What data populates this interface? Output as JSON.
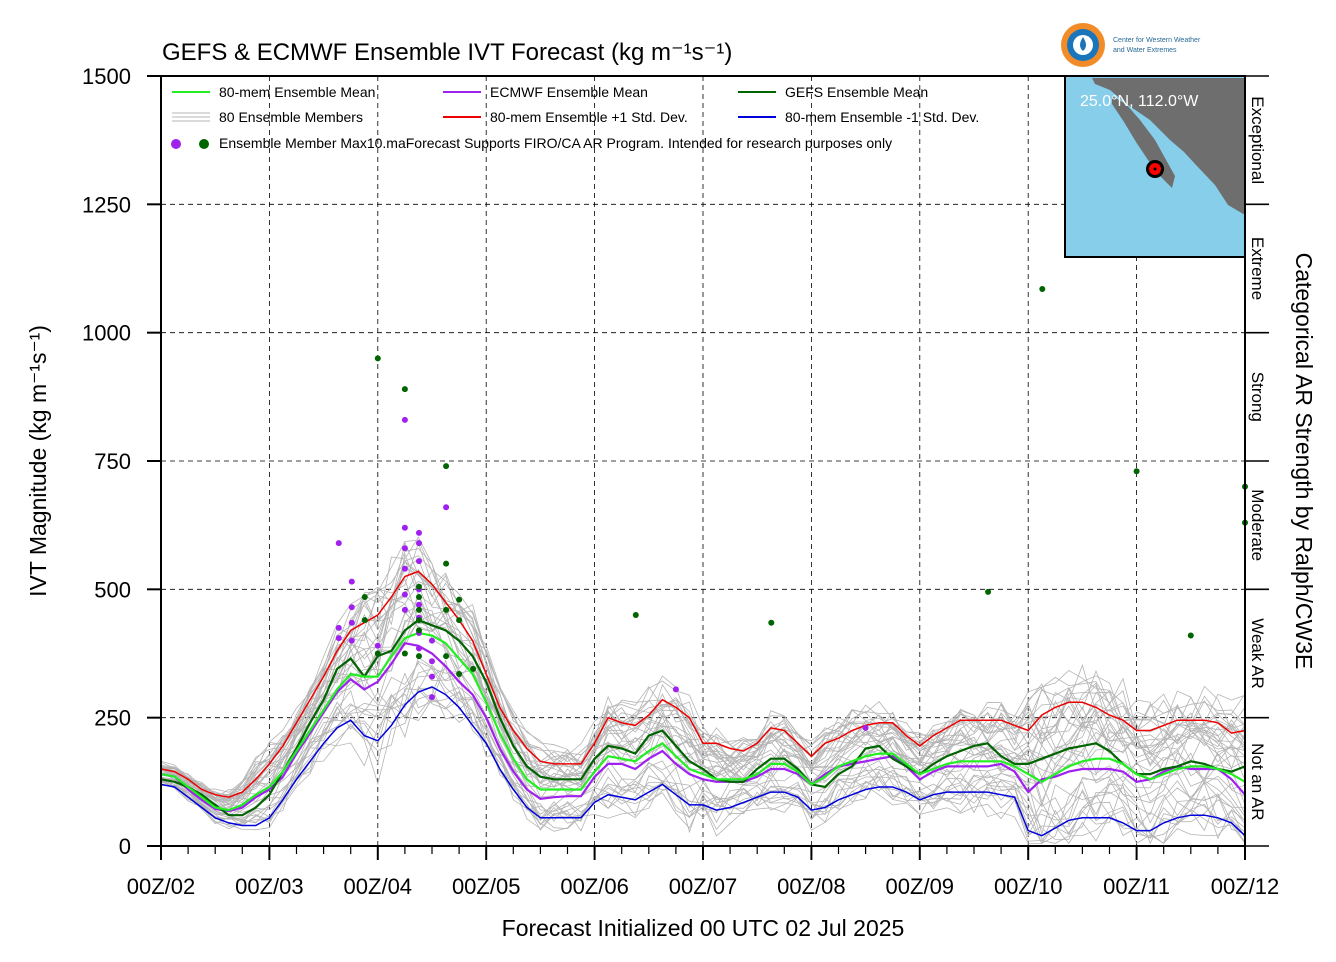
{
  "title": "GEFS & ECMWF Ensemble IVT Forecast (kg m⁻¹s⁻¹)",
  "ylabel": "IVT Magnitude (kg m⁻¹s⁻¹)",
  "xlabel": "Forecast Initialized 00 UTC 02 Jul 2025",
  "right_label": "Categorical AR Strength by Ralph/CW3E",
  "logo": {
    "line1": "Center for Western Weather",
    "line2": "and Water Extremes"
  },
  "inset": {
    "location_label": "25.0°N, 112.0°W",
    "land_color": "#6e6e6e",
    "ocean_color": "#87ceeb",
    "marker_color": "#ff0000"
  },
  "legend": {
    "row1": [
      "80-mem Ensemble Mean",
      "ECMWF Ensemble Mean",
      "GEFS Ensemble Mean"
    ],
    "row2": [
      "80 Ensemble Members",
      "80-mem Ensemble +1 Std. Dev.",
      "80-mem Ensemble -1 Std. Dev."
    ],
    "row3": "Ensemble Member Max",
    "note": "10.maForecast Supports FIRO/CA AR Program. Intended for research purposes only"
  },
  "categories": [
    {
      "label": "Not an AR",
      "from": 0,
      "to": 250
    },
    {
      "label": "Weak AR",
      "from": 250,
      "to": 500
    },
    {
      "label": "Moderate",
      "from": 500,
      "to": 750
    },
    {
      "label": "Strong",
      "from": 750,
      "to": 1000
    },
    {
      "label": "Extreme",
      "from": 1000,
      "to": 1250
    },
    {
      "label": "Exceptional",
      "from": 1250,
      "to": 1500
    }
  ],
  "chart_data": {
    "type": "line",
    "x_unit": "forecast day (00Z of Jul date)",
    "xlim": [
      2,
      12
    ],
    "ylim": [
      0,
      1500
    ],
    "xticks": [
      2,
      3,
      4,
      5,
      6,
      7,
      8,
      9,
      10,
      11,
      12
    ],
    "xtick_labels": [
      "00Z/02",
      "00Z/03",
      "00Z/04",
      "00Z/05",
      "00Z/06",
      "00Z/07",
      "00Z/08",
      "00Z/09",
      "00Z/10",
      "00Z/11",
      "00Z/12"
    ],
    "yticks": [
      0,
      250,
      500,
      750,
      1000,
      1250,
      1500
    ],
    "ytick_labels": [
      "0",
      "250",
      "500",
      "750",
      "1000",
      "1250",
      "1500"
    ],
    "grid": true,
    "legend_position": "top-left",
    "colors": {
      "mean80": "#22ee22",
      "ecmwf": "#a020f0",
      "gefs": "#006400",
      "plus_sd": "#ee0000",
      "minus_sd": "#0000dd",
      "members": "#b4b4b4"
    },
    "x": [
      2.0,
      2.125,
      2.25,
      2.375,
      2.5,
      2.625,
      2.75,
      2.875,
      3.0,
      3.125,
      3.25,
      3.375,
      3.5,
      3.625,
      3.75,
      3.875,
      4.0,
      4.125,
      4.25,
      4.375,
      4.5,
      4.625,
      4.75,
      4.875,
      5.0,
      5.125,
      5.25,
      5.375,
      5.5,
      5.625,
      5.75,
      5.875,
      6.0,
      6.125,
      6.25,
      6.375,
      6.5,
      6.625,
      6.75,
      6.875,
      7.0,
      7.125,
      7.25,
      7.375,
      7.5,
      7.625,
      7.75,
      7.875,
      8.0,
      8.125,
      8.25,
      8.375,
      8.5,
      8.625,
      8.75,
      8.875,
      9.0,
      9.125,
      9.25,
      9.375,
      9.5,
      9.625,
      9.75,
      9.875,
      10.0,
      10.125,
      10.25,
      10.375,
      10.5,
      10.625,
      10.75,
      10.875,
      11.0,
      11.125,
      11.25,
      11.375,
      11.5,
      11.625,
      11.75,
      11.875,
      12.0
    ],
    "series": [
      {
        "key": "mean80",
        "name": "80-mem Ensemble Mean",
        "values": [
          140,
          135,
          115,
          95,
          75,
          70,
          80,
          100,
          115,
          145,
          185,
          225,
          265,
          305,
          335,
          330,
          330,
          370,
          405,
          415,
          410,
          395,
          365,
          335,
          280,
          220,
          170,
          130,
          110,
          110,
          110,
          110,
          145,
          175,
          170,
          165,
          185,
          200,
          175,
          150,
          140,
          130,
          130,
          130,
          140,
          160,
          160,
          145,
          120,
          135,
          155,
          165,
          175,
          180,
          180,
          160,
          140,
          150,
          160,
          165,
          165,
          165,
          165,
          155,
          140,
          125,
          140,
          155,
          165,
          170,
          170,
          160,
          140,
          130,
          140,
          150,
          155,
          155,
          150,
          140,
          125
        ]
      },
      {
        "key": "ecmwf",
        "name": "ECMWF Ensemble Mean",
        "values": [
          140,
          135,
          110,
          90,
          72,
          68,
          75,
          95,
          110,
          135,
          180,
          220,
          260,
          300,
          325,
          305,
          320,
          355,
          395,
          390,
          375,
          350,
          320,
          295,
          250,
          190,
          145,
          110,
          92,
          95,
          97,
          97,
          135,
          160,
          160,
          150,
          170,
          185,
          160,
          140,
          130,
          125,
          125,
          125,
          135,
          150,
          150,
          140,
          120,
          140,
          155,
          160,
          165,
          170,
          175,
          155,
          130,
          145,
          155,
          155,
          155,
          155,
          160,
          145,
          105,
          130,
          135,
          145,
          150,
          150,
          150,
          145,
          125,
          130,
          145,
          155,
          150,
          150,
          150,
          130,
          100
        ]
      },
      {
        "key": "gefs",
        "name": "GEFS Ensemble Mean",
        "values": [
          130,
          125,
          115,
          100,
          80,
          60,
          60,
          75,
          100,
          145,
          190,
          240,
          285,
          345,
          365,
          330,
          370,
          380,
          420,
          440,
          430,
          420,
          400,
          370,
          320,
          250,
          195,
          155,
          135,
          130,
          130,
          130,
          170,
          195,
          190,
          180,
          215,
          225,
          195,
          165,
          150,
          130,
          125,
          125,
          150,
          170,
          170,
          150,
          120,
          115,
          140,
          155,
          190,
          195,
          170,
          155,
          140,
          160,
          175,
          185,
          195,
          200,
          175,
          160,
          160,
          170,
          180,
          190,
          195,
          200,
          185,
          160,
          140,
          140,
          150,
          155,
          165,
          160,
          150,
          145,
          155
        ]
      },
      {
        "key": "plus_sd",
        "name": "80-mem Ensemble +1 Std. Dev.",
        "values": [
          150,
          145,
          130,
          110,
          100,
          95,
          105,
          130,
          160,
          195,
          240,
          285,
          330,
          380,
          420,
          435,
          450,
          485,
          525,
          535,
          510,
          475,
          440,
          400,
          335,
          270,
          225,
          190,
          165,
          160,
          160,
          160,
          200,
          250,
          240,
          235,
          255,
          285,
          270,
          250,
          200,
          200,
          190,
          185,
          200,
          230,
          225,
          200,
          175,
          200,
          210,
          225,
          235,
          240,
          240,
          215,
          195,
          215,
          230,
          245,
          245,
          245,
          245,
          235,
          225,
          255,
          270,
          280,
          280,
          270,
          255,
          245,
          225,
          225,
          235,
          245,
          245,
          245,
          240,
          220,
          225
        ]
      },
      {
        "key": "minus_sd",
        "name": "80-mem Ensemble -1 Std. Dev.",
        "values": [
          120,
          115,
          95,
          75,
          55,
          45,
          40,
          40,
          55,
          90,
          130,
          165,
          200,
          230,
          245,
          215,
          205,
          235,
          275,
          300,
          310,
          295,
          270,
          235,
          200,
          150,
          110,
          75,
          55,
          55,
          55,
          55,
          85,
          100,
          95,
          90,
          105,
          120,
          100,
          80,
          80,
          70,
          75,
          85,
          95,
          105,
          105,
          95,
          70,
          75,
          90,
          100,
          110,
          115,
          115,
          105,
          90,
          100,
          105,
          105,
          105,
          105,
          100,
          95,
          30,
          20,
          35,
          50,
          55,
          55,
          55,
          45,
          30,
          30,
          45,
          55,
          60,
          60,
          55,
          45,
          20
        ]
      }
    ],
    "member_max_ecmwf": [
      [
        3.64,
        590
      ],
      [
        3.76,
        515
      ],
      [
        3.76,
        465
      ],
      [
        3.76,
        435
      ],
      [
        3.76,
        400
      ],
      [
        3.64,
        425
      ],
      [
        3.64,
        405
      ],
      [
        4.0,
        390
      ],
      [
        4.25,
        830
      ],
      [
        4.25,
        620
      ],
      [
        4.25,
        580
      ],
      [
        4.25,
        540
      ],
      [
        4.25,
        490
      ],
      [
        4.25,
        460
      ],
      [
        4.38,
        610
      ],
      [
        4.38,
        590
      ],
      [
        4.38,
        555
      ],
      [
        4.38,
        500
      ],
      [
        4.38,
        470
      ],
      [
        4.38,
        445
      ],
      [
        4.38,
        415
      ],
      [
        4.38,
        385
      ],
      [
        4.5,
        400
      ],
      [
        4.5,
        360
      ],
      [
        4.5,
        330
      ],
      [
        4.5,
        290
      ],
      [
        4.63,
        660
      ],
      [
        6.75,
        305
      ],
      [
        8.5,
        230
      ]
    ],
    "member_max_gefs": [
      [
        3.88,
        485
      ],
      [
        3.88,
        440
      ],
      [
        4.0,
        950
      ],
      [
        4.0,
        375
      ],
      [
        4.25,
        890
      ],
      [
        4.25,
        375
      ],
      [
        4.38,
        505
      ],
      [
        4.38,
        485
      ],
      [
        4.38,
        460
      ],
      [
        4.38,
        440
      ],
      [
        4.38,
        420
      ],
      [
        4.38,
        370
      ],
      [
        4.63,
        740
      ],
      [
        4.63,
        550
      ],
      [
        4.63,
        460
      ],
      [
        4.63,
        370
      ],
      [
        4.75,
        480
      ],
      [
        4.75,
        440
      ],
      [
        4.75,
        335
      ],
      [
        4.88,
        345
      ],
      [
        6.38,
        450
      ],
      [
        7.63,
        435
      ],
      [
        9.63,
        495
      ],
      [
        10.13,
        1085
      ],
      [
        11.0,
        730
      ],
      [
        11.5,
        410
      ],
      [
        12.0,
        700
      ],
      [
        12.0,
        630
      ]
    ]
  }
}
